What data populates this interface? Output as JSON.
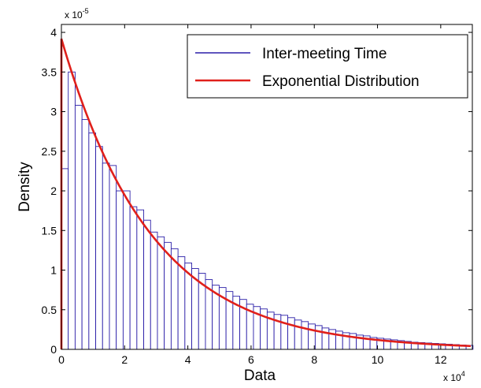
{
  "chart_data": {
    "type": "bar",
    "xlabel": "Data",
    "ylabel": "Density",
    "x_multiplier": "x 10",
    "x_multiplier_exp": "4",
    "y_multiplier": "x 10",
    "y_multiplier_exp": "-5",
    "xlim": [
      0,
      13
    ],
    "ylim": [
      0,
      4.1
    ],
    "xticks": [
      "0",
      "2",
      "4",
      "6",
      "8",
      "10",
      "12"
    ],
    "xtick_values": [
      0,
      2,
      4,
      6,
      8,
      10,
      12
    ],
    "yticks": [
      "0",
      "0.5",
      "1",
      "1.5",
      "2",
      "2.5",
      "3",
      "3.5",
      "4"
    ],
    "ytick_values": [
      0,
      0.5,
      1,
      1.5,
      2,
      2.5,
      3,
      3.5,
      4
    ],
    "grid": false,
    "legend_position": "top-right",
    "histogram": {
      "name": "Inter-meeting Time",
      "color": "#2b1fa8",
      "bin_start": 0,
      "bin_width": 0.217,
      "values": [
        2.28,
        3.5,
        3.08,
        2.9,
        2.73,
        2.56,
        2.35,
        2.32,
        2.0,
        2.0,
        1.8,
        1.76,
        1.63,
        1.48,
        1.42,
        1.35,
        1.27,
        1.17,
        1.09,
        1.02,
        0.96,
        0.88,
        0.81,
        0.78,
        0.73,
        0.67,
        0.63,
        0.57,
        0.54,
        0.51,
        0.47,
        0.44,
        0.43,
        0.4,
        0.37,
        0.35,
        0.32,
        0.3,
        0.27,
        0.25,
        0.23,
        0.21,
        0.2,
        0.18,
        0.17,
        0.15,
        0.14,
        0.13,
        0.12,
        0.11,
        0.1,
        0.09,
        0.085,
        0.08,
        0.075,
        0.07,
        0.065,
        0.06,
        0.055,
        0.05
      ]
    },
    "curve": {
      "name": "Exponential Distribution",
      "color": "#e0201b",
      "type": "exponential",
      "peak_density": 3.92,
      "rate": 0.35
    }
  }
}
